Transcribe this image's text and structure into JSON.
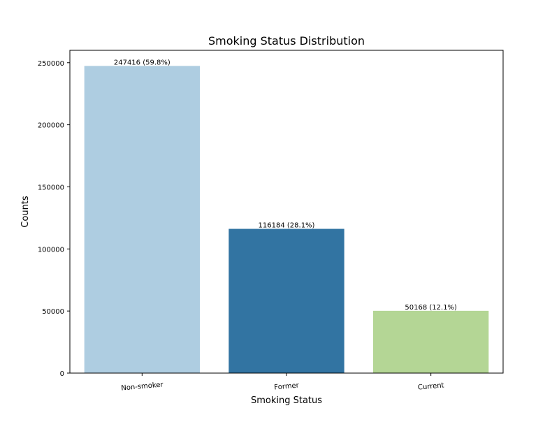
{
  "chart_data": {
    "type": "bar",
    "title": "Smoking Status Distribution",
    "xlabel": "Smoking Status",
    "ylabel": "Counts",
    "categories": [
      "Non-smoker",
      "Former",
      "Current"
    ],
    "values": [
      247416,
      116184,
      50168
    ],
    "data_labels": [
      "247416 (59.8%)",
      "116184 (28.1%)",
      "50168 (12.1%)"
    ],
    "colors": [
      "#aecde1",
      "#3274a2",
      "#b4d695"
    ],
    "ylim": [
      0,
      260000
    ],
    "yticks": [
      0,
      50000,
      100000,
      150000,
      200000,
      250000
    ],
    "ytick_labels": [
      "0",
      "50000",
      "100000",
      "150000",
      "200000",
      "250000"
    ],
    "grid": false,
    "legend": "none"
  }
}
